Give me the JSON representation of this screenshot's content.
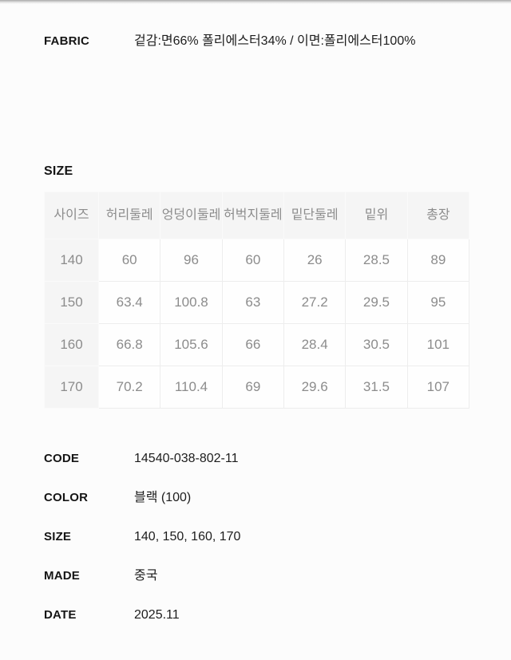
{
  "fabric": {
    "label": "FABRIC",
    "value": "겉감:면66% 폴리에스터34% / 이면:폴리에스터100%"
  },
  "size_section": {
    "heading": "SIZE"
  },
  "size_table": {
    "columns": [
      "사이즈",
      "허리둘레",
      "엉덩이둘레",
      "허벅지둘레",
      "밑단둘레",
      "밑위",
      "총장"
    ],
    "rows": [
      [
        "140",
        "60",
        "96",
        "60",
        "26",
        "28.5",
        "89"
      ],
      [
        "150",
        "63.4",
        "100.8",
        "63",
        "27.2",
        "29.5",
        "95"
      ],
      [
        "160",
        "66.8",
        "105.6",
        "66",
        "28.4",
        "30.5",
        "101"
      ],
      [
        "170",
        "70.2",
        "110.4",
        "69",
        "29.6",
        "31.5",
        "107"
      ]
    ]
  },
  "details": [
    {
      "label": "CODE",
      "value": "14540-038-802-11"
    },
    {
      "label": "COLOR",
      "value": "블랙 (100)"
    },
    {
      "label": "SIZE",
      "value": "140, 150, 160, 170"
    },
    {
      "label": "MADE",
      "value": "중국"
    },
    {
      "label": "DATE",
      "value": "2025.11"
    }
  ],
  "colors": {
    "page_bg": "#fcfcfc",
    "table_header_bg": "#f5f5f5",
    "table_border": "#ededed",
    "table_text": "#8c8c8c",
    "dark_text": "#1d1d1d"
  }
}
